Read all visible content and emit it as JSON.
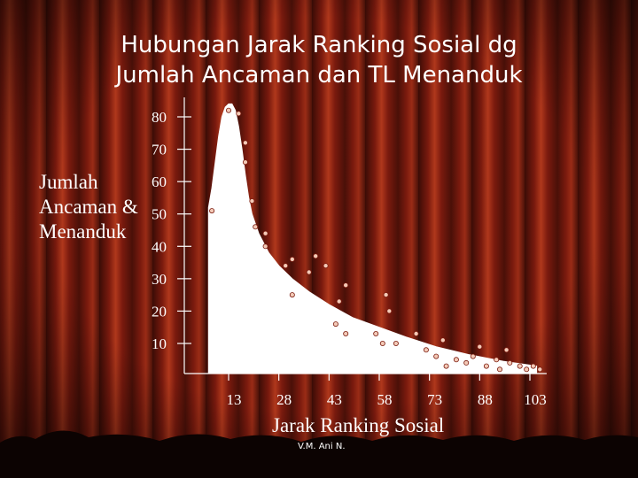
{
  "title_lines": [
    "Hubungan Jarak Ranking Sosial dg",
    "Jumlah Ancaman dan TL Menanduk"
  ],
  "credit": "V.M. Ani N.",
  "colors": {
    "text": "#ffffff",
    "background_dark": "#1a0604",
    "curtain_red": "#7a1a0e",
    "curtain_highlight": "#b0381c",
    "fill_curve": "#ffffff",
    "point": "#f3c9b6",
    "curtain_fringe": "#0c0302"
  },
  "chart_data": {
    "type": "scatter",
    "title": "Hubungan Jarak Ranking Sosial dg Jumlah Ancaman dan TL Menanduk",
    "xlabel": "Jarak Ranking Sosial",
    "ylabel_lines": [
      "Jumlah",
      "Ancaman &",
      "Menanduk"
    ],
    "x_ticks": [
      13,
      28,
      43,
      58,
      73,
      88,
      103
    ],
    "y_ticks": [
      10,
      20,
      30,
      40,
      50,
      60,
      70,
      80
    ],
    "xlim": [
      3,
      108
    ],
    "ylim": [
      2,
      86
    ],
    "grid": false,
    "legend": "none",
    "points": [
      {
        "x": 8,
        "y": 51
      },
      {
        "x": 13,
        "y": 82
      },
      {
        "x": 16,
        "y": 81
      },
      {
        "x": 18,
        "y": 72
      },
      {
        "x": 18,
        "y": 66
      },
      {
        "x": 20,
        "y": 54
      },
      {
        "x": 21,
        "y": 46
      },
      {
        "x": 24,
        "y": 44
      },
      {
        "x": 24,
        "y": 40
      },
      {
        "x": 30,
        "y": 34
      },
      {
        "x": 32,
        "y": 36
      },
      {
        "x": 32,
        "y": 25
      },
      {
        "x": 37,
        "y": 32
      },
      {
        "x": 39,
        "y": 37
      },
      {
        "x": 42,
        "y": 34
      },
      {
        "x": 45,
        "y": 16
      },
      {
        "x": 46,
        "y": 23
      },
      {
        "x": 48,
        "y": 28
      },
      {
        "x": 48,
        "y": 13
      },
      {
        "x": 57,
        "y": 13
      },
      {
        "x": 59,
        "y": 10
      },
      {
        "x": 60,
        "y": 25
      },
      {
        "x": 61,
        "y": 20
      },
      {
        "x": 63,
        "y": 10
      },
      {
        "x": 69,
        "y": 13
      },
      {
        "x": 72,
        "y": 8
      },
      {
        "x": 75,
        "y": 6
      },
      {
        "x": 77,
        "y": 11
      },
      {
        "x": 78,
        "y": 3
      },
      {
        "x": 81,
        "y": 5
      },
      {
        "x": 84,
        "y": 4
      },
      {
        "x": 86,
        "y": 6
      },
      {
        "x": 88,
        "y": 9
      },
      {
        "x": 90,
        "y": 3
      },
      {
        "x": 93,
        "y": 5
      },
      {
        "x": 94,
        "y": 2
      },
      {
        "x": 96,
        "y": 8
      },
      {
        "x": 97,
        "y": 4
      },
      {
        "x": 100,
        "y": 3
      },
      {
        "x": 102,
        "y": 2
      },
      {
        "x": 104,
        "y": 3
      },
      {
        "x": 106,
        "y": 2
      }
    ],
    "fit_curve": [
      [
        7,
        52
      ],
      [
        8,
        58
      ],
      [
        9,
        66
      ],
      [
        10,
        74
      ],
      [
        11,
        80
      ],
      [
        12,
        83
      ],
      [
        13,
        84
      ],
      [
        14,
        84
      ],
      [
        15,
        82
      ],
      [
        16,
        77
      ],
      [
        17,
        70
      ],
      [
        18,
        62
      ],
      [
        19,
        55
      ],
      [
        20,
        50
      ],
      [
        22,
        44
      ],
      [
        25,
        38
      ],
      [
        28,
        34
      ],
      [
        32,
        30
      ],
      [
        37,
        26
      ],
      [
        43,
        22
      ],
      [
        50,
        18
      ],
      [
        58,
        15
      ],
      [
        66,
        12
      ],
      [
        75,
        9
      ],
      [
        85,
        6.5
      ],
      [
        95,
        4.5
      ],
      [
        105,
        3
      ]
    ]
  }
}
